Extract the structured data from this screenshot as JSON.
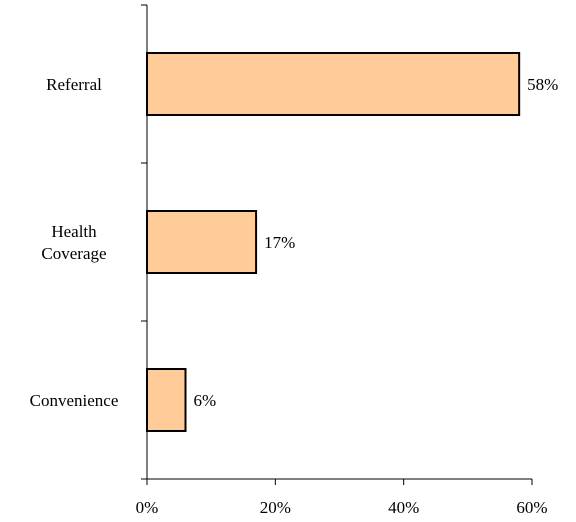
{
  "chart_data": {
    "type": "bar",
    "orientation": "horizontal",
    "categories": [
      [
        "Referral"
      ],
      [
        "Health",
        "Coverage"
      ],
      [
        "Convenience"
      ]
    ],
    "values": [
      58,
      17,
      6
    ],
    "data_labels": [
      "58%",
      "17%",
      "6%"
    ],
    "xlim": [
      0,
      60
    ],
    "x_ticks": [
      0,
      20,
      40,
      60
    ],
    "x_tick_labels": [
      "0%",
      "20%",
      "40%",
      "60%"
    ],
    "title": "",
    "xlabel": "",
    "ylabel": "",
    "grid": false,
    "legend": "none",
    "bar_color": "#FFCC99",
    "bar_border_color": "#000000"
  }
}
